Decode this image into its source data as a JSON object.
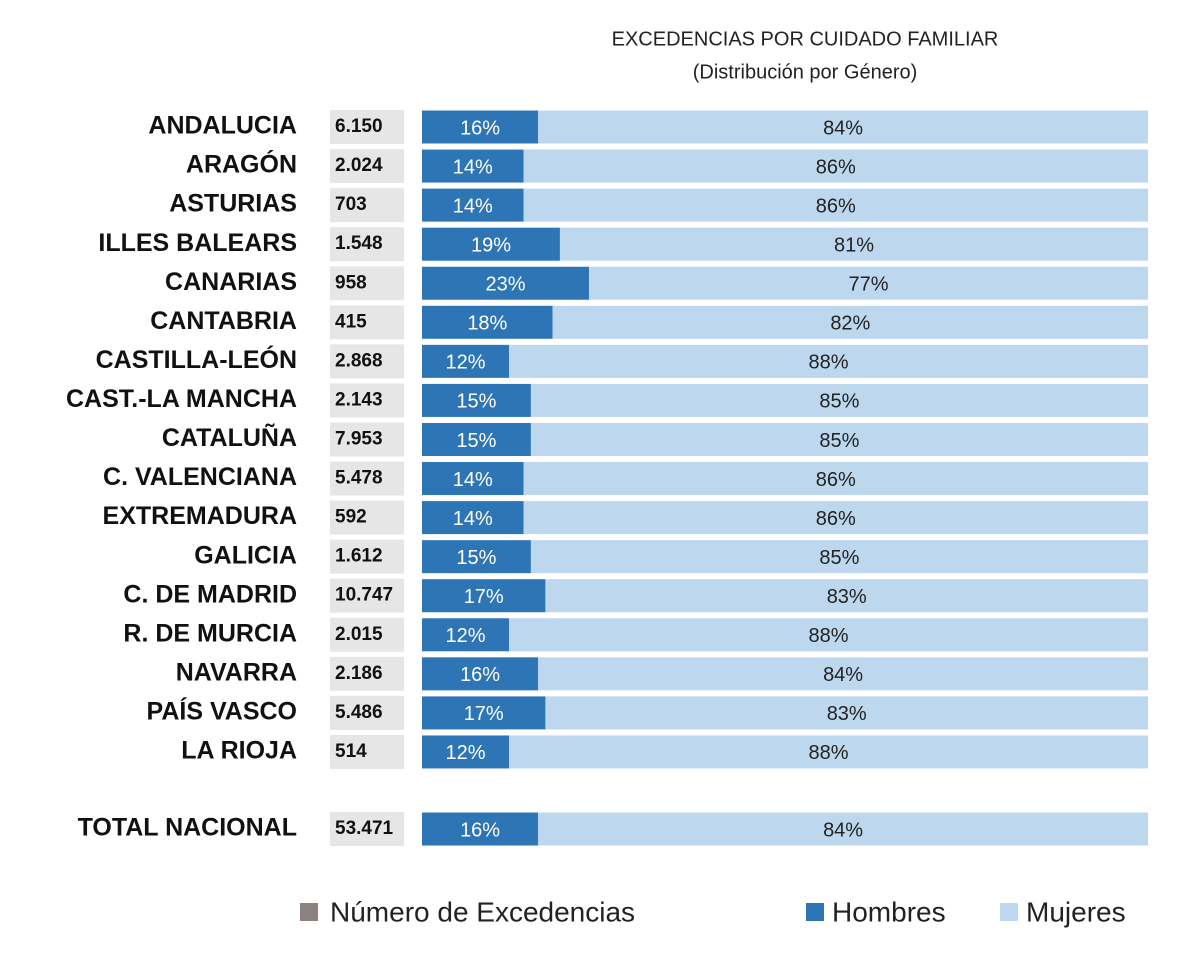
{
  "chart_data": {
    "type": "bar",
    "stacked": true,
    "orientation": "horizontal",
    "title": "EXCEDENCIAS POR CUIDADO FAMILIAR",
    "subtitle": "(Distribución por Género)",
    "categories": [
      "ANDALUCIA",
      "ARAGÓN",
      "ASTURIAS",
      "ILLES BALEARS",
      "CANARIAS",
      "CANTABRIA",
      "CASTILLA-LEÓN",
      "CAST.-LA MANCHA",
      "CATALUÑA",
      "C. VALENCIANA",
      "EXTREMADURA",
      "GALICIA",
      "C. DE MADRID",
      "R. DE MURCIA",
      "NAVARRA",
      "PAÍS VASCO",
      "LA RIOJA",
      "TOTAL NACIONAL"
    ],
    "xlim": [
      0,
      100
    ],
    "count_series": {
      "name": "Número de Excedencias",
      "color": "#8c8080",
      "box_color": "#e6e6e6",
      "values": [
        6150,
        2024,
        703,
        1548,
        958,
        415,
        2868,
        2143,
        7953,
        5478,
        592,
        1612,
        10747,
        2015,
        2186,
        5486,
        514,
        53471
      ],
      "value_labels": [
        "6.150",
        "2.024",
        "703",
        "1.548",
        "958",
        "415",
        "2.868",
        "2.143",
        "7.953",
        "5.478",
        "592",
        "1.612",
        "10.747",
        "2.015",
        "2.186",
        "5.486",
        "514",
        "53.471"
      ]
    },
    "series": [
      {
        "name": "Hombres",
        "color": "#2e75b6",
        "values": [
          16,
          14,
          14,
          19,
          23,
          18,
          12,
          15,
          15,
          14,
          14,
          15,
          17,
          12,
          16,
          17,
          12,
          16
        ],
        "value_labels": [
          "16%",
          "14%",
          "14%",
          "19%",
          "23%",
          "18%",
          "12%",
          "15%",
          "15%",
          "14%",
          "14%",
          "15%",
          "17%",
          "12%",
          "16%",
          "17%",
          "12%",
          "16%"
        ]
      },
      {
        "name": "Mujeres",
        "color": "#bdd7ee",
        "values": [
          84,
          86,
          86,
          81,
          77,
          82,
          88,
          85,
          85,
          86,
          86,
          85,
          83,
          88,
          84,
          83,
          88,
          84
        ],
        "value_labels": [
          "84%",
          "86%",
          "86%",
          "81%",
          "77%",
          "82%",
          "88%",
          "85%",
          "85%",
          "86%",
          "86%",
          "85%",
          "83%",
          "88%",
          "84%",
          "83%",
          "88%",
          "84%"
        ]
      }
    ]
  }
}
